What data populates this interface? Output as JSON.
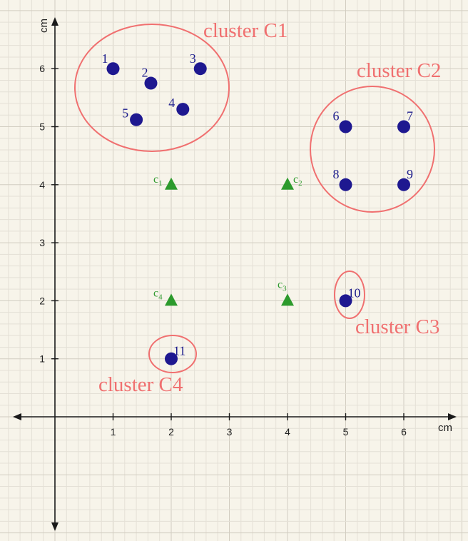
{
  "axes": {
    "x_unit": "cm",
    "y_unit": "cm",
    "x_ticks": [
      "1",
      "2",
      "3",
      "4",
      "5",
      "6"
    ],
    "y_ticks": [
      "1",
      "2",
      "3",
      "4",
      "5",
      "6"
    ]
  },
  "chart_data": {
    "type": "scatter",
    "xlabel": "cm",
    "ylabel": "cm",
    "grid": true,
    "points": [
      {
        "label": "1",
        "x": 1,
        "y": 6
      },
      {
        "label": "2",
        "x": 1.65,
        "y": 5.75
      },
      {
        "label": "3",
        "x": 2.5,
        "y": 6
      },
      {
        "label": "4",
        "x": 2.2,
        "y": 5.3
      },
      {
        "label": "5",
        "x": 1.4,
        "y": 5.12
      },
      {
        "label": "6",
        "x": 5,
        "y": 5
      },
      {
        "label": "7",
        "x": 6,
        "y": 5
      },
      {
        "label": "8",
        "x": 5,
        "y": 4
      },
      {
        "label": "9",
        "x": 6,
        "y": 4
      },
      {
        "label": "10",
        "x": 5,
        "y": 2
      },
      {
        "label": "11",
        "x": 2,
        "y": 1
      }
    ],
    "centroids": [
      {
        "label": "c",
        "sub": "1",
        "x": 2,
        "y": 4
      },
      {
        "label": "c",
        "sub": "2",
        "x": 4,
        "y": 4
      },
      {
        "label": "c",
        "sub": "3",
        "x": 4,
        "y": 2
      },
      {
        "label": "c",
        "sub": "4",
        "x": 2,
        "y": 2
      }
    ],
    "clusters": [
      {
        "label": "cluster C1",
        "members": [
          "1",
          "2",
          "3",
          "4",
          "5"
        ]
      },
      {
        "label": "cluster C2",
        "members": [
          "6",
          "7",
          "8",
          "9"
        ]
      },
      {
        "label": "cluster C3",
        "members": [
          "10"
        ]
      },
      {
        "label": "cluster C4",
        "members": [
          "11"
        ]
      }
    ]
  },
  "colors": {
    "point": "#1e1890",
    "centroid": "#2c9a2c",
    "cluster": "#f07070",
    "axis": "#1a1a1a",
    "grid_minor": "#e4e0d6",
    "grid_major": "#d2cdc1",
    "background": "#f7f4ea"
  }
}
